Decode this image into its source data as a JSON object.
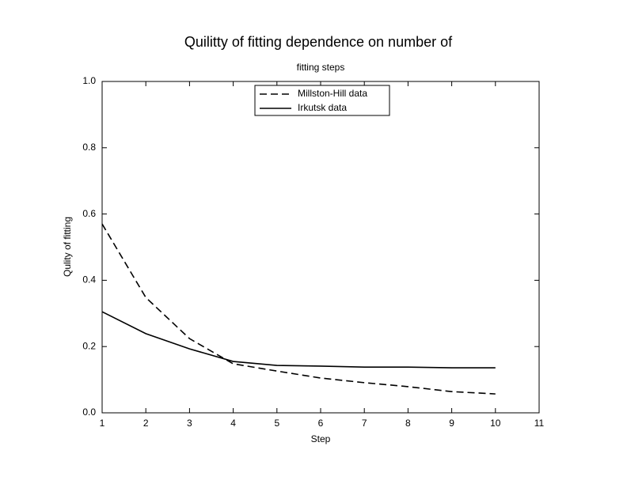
{
  "chart_data": {
    "type": "line",
    "title": "Quilitty of fitting dependence on number of",
    "subtitle": "fitting steps",
    "x_label": "Step",
    "y_label": "Qulity of fitting",
    "x": [
      1,
      2,
      3,
      4,
      5,
      6,
      7,
      8,
      9,
      10
    ],
    "series": [
      {
        "name": "Millston-Hill data",
        "color": "#000000",
        "dash": "dashed",
        "values": [
          0.57,
          0.348,
          0.224,
          0.148,
          0.126,
          0.105,
          0.091,
          0.079,
          0.064,
          0.057
        ]
      },
      {
        "name": "Irkutsk data",
        "color": "#000000",
        "dash": "solid",
        "values": [
          0.305,
          0.239,
          0.193,
          0.155,
          0.143,
          0.141,
          0.138,
          0.138,
          0.136,
          0.136
        ]
      }
    ],
    "xlim": [
      1,
      11
    ],
    "xticks": [
      1,
      2,
      3,
      4,
      5,
      6,
      7,
      8,
      9,
      10,
      11
    ],
    "ylim": [
      0,
      1
    ],
    "yticks": [
      {
        "value": 0,
        "label": "0.0"
      },
      0.2,
      0.4,
      0.6,
      0.8,
      {
        "value": 1,
        "label": "1.0"
      }
    ],
    "grid": false,
    "legend": "upper center"
  }
}
